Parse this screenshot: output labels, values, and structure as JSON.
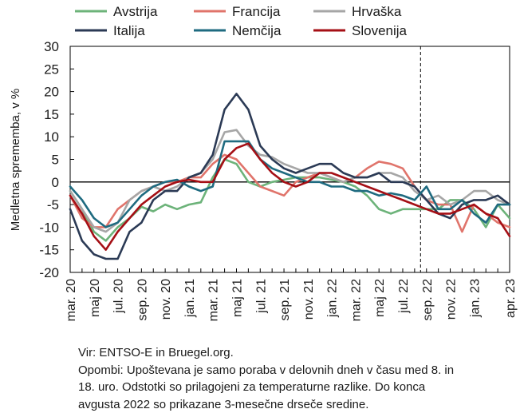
{
  "chart_data": {
    "type": "line",
    "ylabel": "Medletna sprememba, v %",
    "ylim": [
      -20,
      30
    ],
    "yticks": [
      -20,
      -15,
      -10,
      -5,
      0,
      5,
      10,
      15,
      20,
      25,
      30
    ],
    "x_labels": [
      "mar. 20",
      "maj 20",
      "jul. 20",
      "sep. 20",
      "nov. 20",
      "jan. 21",
      "mar. 21",
      "maj 21",
      "jul. 21",
      "sep. 21",
      "nov. 21",
      "jan. 22",
      "mar. 22",
      "maj 22",
      "jul. 22",
      "sep. 22",
      "nov. 22",
      "jan. 23",
      "apr. 23"
    ],
    "x_label_index": [
      0,
      2,
      4,
      6,
      8,
      10,
      12,
      14,
      16,
      18,
      20,
      22,
      24,
      26,
      28,
      30,
      32,
      34,
      37
    ],
    "x": [
      "mar. 20",
      "apr. 20",
      "maj 20",
      "jun. 20",
      "jul. 20",
      "avg. 20",
      "sep. 20",
      "okt. 20",
      "nov. 20",
      "dec. 20",
      "jan. 21",
      "feb. 21",
      "mar. 21",
      "apr. 21",
      "maj 21",
      "jun. 21",
      "jul. 21",
      "avg. 21",
      "sep. 21",
      "okt. 21",
      "nov. 21",
      "dec. 21",
      "jan. 22",
      "feb. 22",
      "mar. 22",
      "apr. 22",
      "maj 22",
      "jun. 22",
      "jul. 22",
      "avg. 22",
      "sep. 22",
      "okt. 22",
      "nov. 22",
      "dec. 22",
      "jan. 23",
      "feb. 23",
      "mar. 23",
      "apr. 23"
    ],
    "n_points": 80,
    "vline_at": 29.5,
    "zero_line": true,
    "legend_position": "top",
    "series": [
      {
        "name": "Avstrija",
        "color": "#6db37a",
        "values": [
          -2,
          -6,
          -11,
          -13,
          -10,
          -8,
          -5.5,
          -6.5,
          -5,
          -6,
          -5,
          -4.5,
          1,
          5,
          4,
          0,
          -1,
          0,
          0.5,
          1,
          1,
          1,
          0.5,
          0,
          -1,
          -3,
          -6,
          -7,
          -6,
          -6,
          -6,
          -6,
          -4,
          -4,
          -6,
          -10,
          -5,
          -8
        ]
      },
      {
        "name": "Francija",
        "color": "#e0746b",
        "values": [
          -3,
          -8,
          -10,
          -10,
          -6,
          -4,
          -2,
          -1,
          0,
          0,
          1,
          1,
          4,
          6,
          5,
          2,
          -1,
          -2,
          -3,
          0,
          1,
          2,
          1,
          0,
          1,
          3,
          4.5,
          4,
          3,
          -1,
          -4,
          -5,
          -5,
          -11,
          -5,
          -7,
          -9,
          -10
        ]
      },
      {
        "name": "Hrvaška",
        "color": "#a6a6a6",
        "values": [
          -2,
          -6,
          -10,
          -11,
          -9,
          -4,
          -2,
          -1,
          -2,
          -1,
          1,
          2,
          5,
          11,
          11.5,
          8,
          6,
          5.5,
          4,
          3,
          2,
          2,
          1,
          0,
          1,
          1,
          2,
          2,
          1,
          -2,
          -4,
          -3,
          -5,
          -4,
          -2,
          -2,
          -4,
          -5
        ]
      },
      {
        "name": "Italija",
        "color": "#2b3a55",
        "values": [
          -6,
          -13,
          -16,
          -17,
          -17,
          -11,
          -9,
          -4,
          -2,
          -2,
          1,
          2,
          6,
          16,
          19.5,
          16,
          8,
          5,
          3,
          2,
          3,
          4,
          4,
          2,
          1,
          1,
          2,
          0,
          0,
          -1,
          -4,
          -7,
          -8,
          -5,
          -4,
          -4,
          -3,
          -5
        ]
      },
      {
        "name": "Nemčija",
        "color": "#1f6b80",
        "values": [
          -1,
          -4,
          -8,
          -10,
          -9,
          -6,
          -3,
          -1,
          0,
          0.5,
          -1,
          -2,
          -1,
          9,
          9,
          9,
          5,
          3,
          2,
          1,
          0,
          0,
          -1,
          -1,
          -2,
          -2,
          -3,
          -2.5,
          -3,
          -4,
          -1,
          -6,
          -6,
          -4,
          -7,
          -9,
          -5,
          -5
        ]
      },
      {
        "name": "Slovenija",
        "color": "#a50f15",
        "values": [
          -3,
          -7,
          -12,
          -15,
          -11,
          -8,
          -5,
          -3,
          -1,
          0,
          0.5,
          0,
          0,
          5,
          7.5,
          8.5,
          5,
          2,
          0,
          -1,
          0,
          2,
          2,
          1,
          0,
          -1,
          -2,
          -3,
          -4,
          -5,
          -6,
          -7,
          -7,
          -6,
          -5,
          -7,
          -8,
          -12
        ]
      }
    ]
  },
  "notes": {
    "source": "Vir: ENTSO-E in Bruegel.org.",
    "remarks": [
      "Opombi: Upoštevana je samo poraba v delovnih dneh v času med 8. in",
      "18. uro. Odstotki so prilagojeni za temperaturne razlike. Do konca",
      "avgusta 2022 so prikazane 3-mesečne drseče sredine."
    ]
  }
}
